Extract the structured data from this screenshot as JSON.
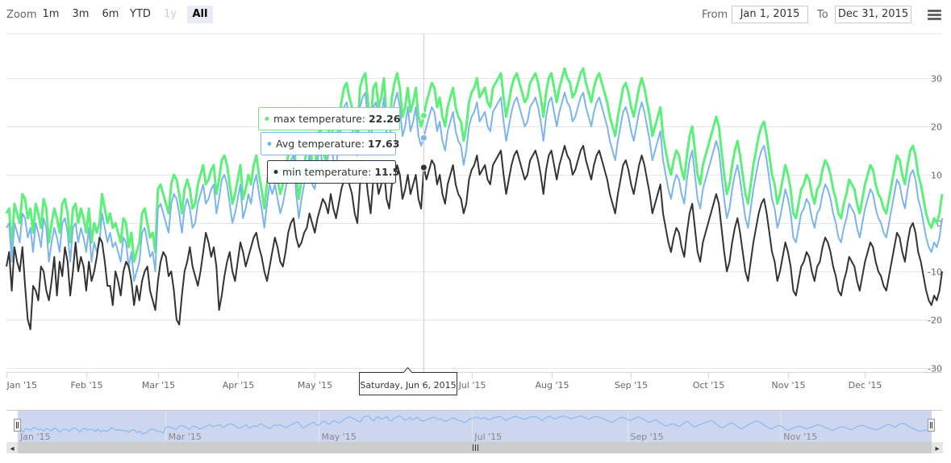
{
  "rangeSelector": {
    "zoom_label": "Zoom",
    "buttons": [
      "1m",
      "3m",
      "6m",
      "YTD",
      "1y",
      "All"
    ],
    "active": "All",
    "disabled": [
      "1y"
    ],
    "from_label": "From",
    "from_value": "Jan 1, 2015",
    "to_label": "To",
    "to_value": "Dec 31, 2015"
  },
  "menu_icon": "hamburger-icon",
  "tooltip": {
    "max_label": "max temperature: ",
    "max_value": "22.26",
    "avg_label": "Avg temperature: ",
    "avg_value": "17.63",
    "min_label": "min temperature: ",
    "min_value": "11.5",
    "date_label": "Saturday, Jun 6, 2015"
  },
  "navigator": {
    "labels": [
      "Jan '15",
      "Mar '15",
      "May '15",
      "Jul '15",
      "Sep '15",
      "Nov '15"
    ],
    "left_arrow": "◂",
    "right_arrow": "▸"
  },
  "chart_data": {
    "type": "line",
    "x_start": "2015-01-01",
    "x_end": "2015-12-31",
    "x_tick_labels": [
      "Jan '15",
      "Feb '15",
      "Mar '15",
      "Apr '15",
      "May '15",
      "Jun '15",
      "Jul '15",
      "Aug '15",
      "Sep '15",
      "Oct '15",
      "Nov '15",
      "Dec '15"
    ],
    "ylim": [
      -30,
      35
    ],
    "y_ticks": [
      30,
      20,
      10,
      0,
      -10,
      -20,
      -30
    ],
    "colors": {
      "max": "#5cf07a",
      "avg": "#7cb5ec",
      "min": "#333333"
    },
    "series": [
      {
        "name": "max temperature",
        "values": [
          2,
          3,
          -5,
          4,
          2,
          0,
          6,
          5,
          1,
          3,
          -2,
          4,
          2,
          -1,
          5,
          3,
          -4,
          0,
          3,
          1,
          -2,
          4,
          5,
          2,
          -4,
          3,
          4,
          0,
          3,
          1,
          -2,
          3,
          -4,
          0,
          -2,
          0,
          6,
          3,
          0,
          2,
          -1,
          0,
          -2,
          -4,
          1,
          0,
          -5,
          -2,
          -8,
          -6,
          -4,
          2,
          3,
          0,
          -3,
          -2,
          -6,
          7,
          8,
          6,
          4,
          2,
          8,
          10,
          9,
          6,
          2,
          7,
          9,
          7,
          3,
          4,
          8,
          10,
          12,
          8,
          9,
          11,
          12,
          6,
          9,
          13,
          14,
          12,
          8,
          4,
          6,
          9,
          12,
          5,
          7,
          10,
          8,
          12,
          14,
          10,
          7,
          3,
          8,
          12,
          10,
          12,
          9,
          6,
          8,
          11,
          14,
          17,
          18,
          10,
          5,
          9,
          12,
          15,
          18,
          12,
          11,
          17,
          20,
          15,
          13,
          18,
          22,
          17,
          16,
          20,
          25,
          28,
          29,
          26,
          24,
          20,
          18,
          28,
          30,
          31,
          25,
          20,
          28,
          29,
          24,
          26,
          30,
          22,
          20,
          26,
          29,
          31,
          28,
          22,
          24,
          28,
          23,
          25,
          28,
          22,
          20,
          22.26,
          25,
          27,
          29,
          28,
          24,
          26,
          22,
          20,
          24,
          26,
          28,
          24,
          22,
          21,
          17,
          20,
          25,
          27,
          28,
          30,
          26,
          27,
          28,
          25,
          24,
          28,
          29,
          30,
          31,
          26,
          22,
          25,
          28,
          30,
          31,
          29,
          27,
          25,
          26,
          29,
          30,
          31,
          29,
          26,
          22,
          27,
          30,
          31,
          28,
          25,
          28,
          30,
          32,
          30,
          29,
          26,
          27,
          29,
          31,
          32,
          29,
          27,
          25,
          28,
          30,
          31,
          29,
          27,
          25,
          22,
          20,
          18,
          22,
          25,
          28,
          29,
          27,
          24,
          22,
          25,
          28,
          30,
          28,
          25,
          22,
          18,
          20,
          22,
          24,
          18,
          15,
          12,
          10,
          13,
          15,
          14,
          11,
          9,
          14,
          18,
          20,
          15,
          10,
          8,
          12,
          14,
          16,
          18,
          20,
          22,
          20,
          15,
          10,
          6,
          8,
          12,
          15,
          17,
          14,
          10,
          6,
          4,
          8,
          12,
          15,
          18,
          20,
          21,
          18,
          14,
          10,
          8,
          4,
          6,
          9,
          12,
          10,
          7,
          2,
          1,
          4,
          7,
          8,
          10,
          9,
          6,
          4,
          7,
          8,
          11,
          13,
          12,
          10,
          7,
          5,
          2,
          1,
          4,
          6,
          9,
          8,
          7,
          4,
          2,
          5,
          8,
          10,
          12,
          11,
          8,
          6,
          5,
          3,
          2,
          5,
          8,
          11,
          14,
          13,
          10,
          8,
          12,
          15,
          16,
          14,
          10,
          8,
          5,
          2,
          0,
          -1,
          1,
          0,
          2,
          6
        ]
      },
      {
        "name": "Avg temperature",
        "values": [
          -1,
          0,
          -8,
          0,
          -2,
          -4,
          2,
          1,
          -3,
          -1,
          -6,
          0,
          -2,
          -5,
          1,
          -1,
          -8,
          -4,
          -1,
          -3,
          -6,
          0,
          1,
          -2,
          -8,
          -1,
          0,
          -4,
          -1,
          -3,
          -6,
          -1,
          -8,
          -4,
          -6,
          -4,
          2,
          -1,
          -4,
          -2,
          -5,
          -4,
          -6,
          -8,
          -3,
          -4,
          -9,
          -6,
          -12,
          -10,
          -8,
          -2,
          -1,
          -4,
          -7,
          -6,
          -10,
          3,
          4,
          2,
          0,
          -2,
          4,
          6,
          5,
          2,
          -2,
          3,
          5,
          3,
          -1,
          0,
          4,
          6,
          8,
          4,
          5,
          7,
          8,
          2,
          5,
          9,
          10,
          8,
          4,
          0,
          2,
          5,
          8,
          1,
          3,
          6,
          4,
          8,
          10,
          6,
          3,
          -1,
          4,
          8,
          6,
          8,
          5,
          2,
          4,
          7,
          10,
          13,
          14,
          6,
          1,
          5,
          8,
          11,
          14,
          8,
          7,
          13,
          16,
          11,
          9,
          14,
          18,
          13,
          12,
          16,
          21,
          24,
          25,
          22,
          20,
          16,
          14,
          24,
          26,
          27,
          21,
          16,
          24,
          25,
          20,
          22,
          26,
          18,
          16,
          22,
          25,
          27,
          24,
          18,
          20,
          24,
          19,
          21,
          24,
          18,
          16,
          17.63,
          20,
          22,
          24,
          23,
          19,
          21,
          17,
          15,
          19,
          21,
          23,
          19,
          17,
          16,
          12,
          15,
          20,
          22,
          23,
          25,
          21,
          22,
          23,
          20,
          19,
          23,
          24,
          25,
          26,
          21,
          17,
          20,
          23,
          25,
          26,
          24,
          22,
          20,
          21,
          24,
          25,
          26,
          24,
          21,
          17,
          22,
          25,
          26,
          23,
          20,
          23,
          25,
          27,
          25,
          24,
          21,
          22,
          24,
          26,
          27,
          24,
          22,
          20,
          23,
          25,
          26,
          24,
          22,
          20,
          17,
          15,
          13,
          17,
          20,
          23,
          24,
          22,
          19,
          17,
          20,
          23,
          25,
          23,
          20,
          17,
          13,
          15,
          17,
          19,
          13,
          10,
          7,
          5,
          8,
          10,
          9,
          6,
          4,
          9,
          13,
          15,
          10,
          5,
          3,
          7,
          9,
          11,
          13,
          15,
          17,
          15,
          10,
          5,
          1,
          3,
          7,
          10,
          12,
          9,
          5,
          1,
          -1,
          3,
          7,
          10,
          13,
          15,
          16,
          13,
          9,
          5,
          3,
          -1,
          1,
          4,
          7,
          5,
          2,
          -3,
          -4,
          -1,
          2,
          3,
          5,
          4,
          1,
          -1,
          2,
          3,
          6,
          8,
          7,
          5,
          2,
          0,
          -3,
          -4,
          -1,
          1,
          4,
          3,
          2,
          -1,
          -3,
          0,
          3,
          5,
          7,
          6,
          3,
          1,
          0,
          -2,
          -3,
          0,
          3,
          6,
          9,
          8,
          5,
          3,
          7,
          10,
          11,
          9,
          5,
          3,
          0,
          -3,
          -5,
          -6,
          -4,
          -5,
          -3,
          1
        ]
      },
      {
        "name": "min temperature",
        "values": [
          -9,
          -6,
          -14,
          -5,
          -8,
          -10,
          -5,
          -13,
          -20,
          -22,
          -13,
          -14,
          -16,
          -9,
          -10,
          -14,
          -16,
          -12,
          -7,
          -15,
          -8,
          -11,
          -5,
          -8,
          -15,
          -10,
          -4,
          -10,
          -7,
          -9,
          -14,
          -8,
          -12,
          -10,
          -7,
          -3,
          -4,
          -8,
          -13,
          -13,
          -17,
          -10,
          -12,
          -15,
          -10,
          -8,
          -9,
          -12,
          -17,
          -13,
          -16,
          -12,
          -10,
          -9,
          -14,
          -16,
          -18,
          -12,
          -8,
          -6,
          -7,
          -11,
          -10,
          -14,
          -20,
          -21,
          -15,
          -10,
          -8,
          -5,
          -9,
          -11,
          -13,
          -10,
          -6,
          -2,
          -4,
          -7,
          -5,
          -9,
          -18,
          -15,
          -11,
          -8,
          -6,
          -10,
          -12,
          -8,
          -4,
          -6,
          -9,
          -7,
          -5,
          -3,
          -2,
          -5,
          -7,
          -10,
          -12,
          -9,
          -6,
          -3,
          -5,
          -8,
          -9,
          -6,
          -2,
          0,
          1,
          -3,
          -5,
          -4,
          -2,
          -1,
          2,
          0,
          -2,
          1,
          3,
          5,
          4,
          2,
          6,
          3,
          1,
          4,
          7,
          9,
          10,
          8,
          6,
          2,
          0,
          8,
          10,
          11,
          6,
          2,
          9,
          10,
          6,
          8,
          11,
          5,
          3,
          8,
          10,
          12,
          10,
          5,
          7,
          10,
          6,
          8,
          10,
          5,
          3,
          11.5,
          9,
          11,
          13,
          12,
          8,
          10,
          6,
          4,
          8,
          10,
          12,
          8,
          6,
          5,
          2,
          4,
          9,
          11,
          12,
          14,
          10,
          11,
          12,
          9,
          8,
          12,
          13,
          14,
          15,
          10,
          6,
          9,
          12,
          14,
          15,
          13,
          11,
          9,
          10,
          13,
          14,
          15,
          13,
          10,
          6,
          11,
          14,
          15,
          12,
          9,
          12,
          14,
          16,
          14,
          13,
          10,
          11,
          13,
          15,
          16,
          13,
          11,
          9,
          12,
          14,
          15,
          13,
          11,
          9,
          6,
          4,
          2,
          6,
          9,
          12,
          13,
          11,
          8,
          6,
          9,
          12,
          14,
          12,
          9,
          6,
          2,
          4,
          6,
          8,
          2,
          -1,
          -4,
          -6,
          -3,
          -1,
          -2,
          -5,
          -7,
          -2,
          2,
          4,
          -1,
          -6,
          -8,
          -4,
          -2,
          0,
          2,
          4,
          6,
          4,
          -1,
          -6,
          -10,
          -8,
          -4,
          -1,
          1,
          -2,
          -6,
          -10,
          -12,
          -8,
          -4,
          -1,
          2,
          4,
          5,
          2,
          -2,
          -6,
          -8,
          -12,
          -10,
          -7,
          -4,
          -6,
          -9,
          -14,
          -15,
          -12,
          -9,
          -8,
          -6,
          -7,
          -10,
          -12,
          -9,
          -8,
          -5,
          -3,
          -4,
          -6,
          -9,
          -11,
          -14,
          -15,
          -12,
          -10,
          -7,
          -8,
          -9,
          -12,
          -14,
          -11,
          -8,
          -6,
          -4,
          -5,
          -8,
          -10,
          -11,
          -13,
          -14,
          -11,
          -8,
          -5,
          -2,
          -3,
          -6,
          -8,
          -4,
          -1,
          0,
          -2,
          -6,
          -8,
          -11,
          -14,
          -16,
          -17,
          -15,
          -16,
          -14,
          -10
        ]
      }
    ]
  }
}
